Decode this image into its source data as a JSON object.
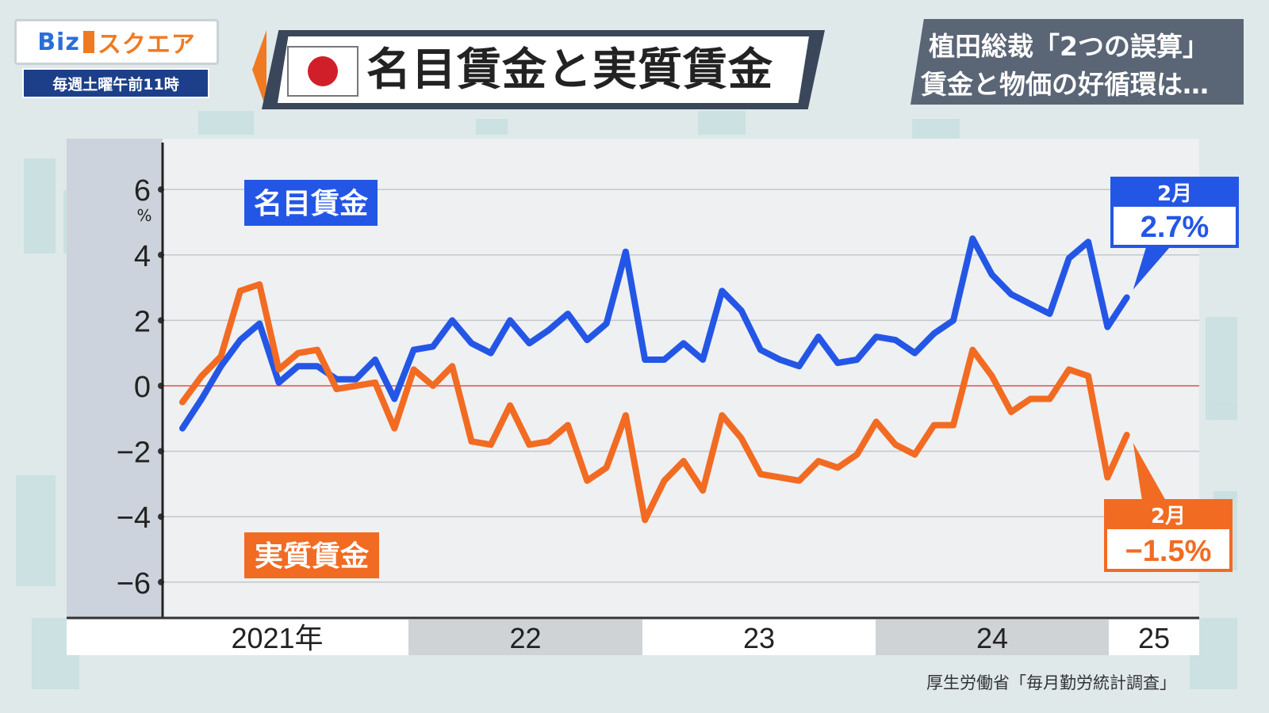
{
  "header": {
    "logo_text": "Biz",
    "logo_accent": "スクエア",
    "schedule": "毎週土曜午前11時",
    "title": "名目賃金と実質賃金",
    "headline_line1": "植田総裁「2つの誤算」",
    "headline_line2": "賃金と物価の好循環は…"
  },
  "legend": {
    "nominal": "名目賃金",
    "real": "実質賃金"
  },
  "callouts": {
    "nominal_month": "2月",
    "nominal_value": "2.7%",
    "real_month": "2月",
    "real_value": "−1.5%"
  },
  "source": "厚生労働省「毎月勤労統計調査」",
  "colors": {
    "nominal": "#2456e6",
    "real": "#f26b22",
    "zero_line": "#e05050"
  },
  "chart_data": {
    "type": "line",
    "y_unit": "%",
    "ylim": [
      -7,
      7
    ],
    "y_ticks": [
      "6",
      "4",
      "2",
      "0",
      "−2",
      "−4",
      "−6"
    ],
    "y_tick_values": [
      6,
      4,
      2,
      0,
      -2,
      -4,
      -6
    ],
    "year_bands": [
      {
        "label": "2021年",
        "months": 12
      },
      {
        "label": "22",
        "months": 12
      },
      {
        "label": "23",
        "months": 12
      },
      {
        "label": "24",
        "months": 12
      },
      {
        "label": "25",
        "months": 2
      }
    ],
    "x_start": "2021-01",
    "x_end": "2025-02",
    "grid": true,
    "series": [
      {
        "name": "名目賃金",
        "values": [
          -1.3,
          -0.4,
          0.6,
          1.4,
          1.9,
          0.1,
          0.6,
          0.6,
          0.2,
          0.2,
          0.8,
          -0.4,
          1.1,
          1.2,
          2.0,
          1.3,
          1.0,
          2.0,
          1.3,
          1.7,
          2.2,
          1.4,
          1.9,
          4.1,
          0.8,
          0.8,
          1.3,
          0.8,
          2.9,
          2.3,
          1.1,
          0.8,
          0.6,
          1.5,
          0.7,
          0.8,
          1.5,
          1.4,
          1.0,
          1.6,
          2.0,
          4.5,
          3.4,
          2.8,
          2.5,
          2.2,
          3.9,
          4.4,
          1.8,
          2.7
        ]
      },
      {
        "name": "実質賃金",
        "values": [
          -0.5,
          0.3,
          0.9,
          2.9,
          3.1,
          0.5,
          1.0,
          1.1,
          -0.1,
          0.0,
          0.1,
          -1.3,
          0.5,
          0.0,
          0.6,
          -1.7,
          -1.8,
          -0.6,
          -1.8,
          -1.7,
          -1.2,
          -2.9,
          -2.5,
          -0.9,
          -4.1,
          -2.9,
          -2.3,
          -3.2,
          -0.9,
          -1.6,
          -2.7,
          -2.8,
          -2.9,
          -2.3,
          -2.5,
          -2.1,
          -1.1,
          -1.8,
          -2.1,
          -1.2,
          -1.2,
          1.1,
          0.3,
          -0.8,
          -0.4,
          -0.4,
          0.5,
          0.3,
          -2.8,
          -1.5
        ]
      }
    ]
  }
}
